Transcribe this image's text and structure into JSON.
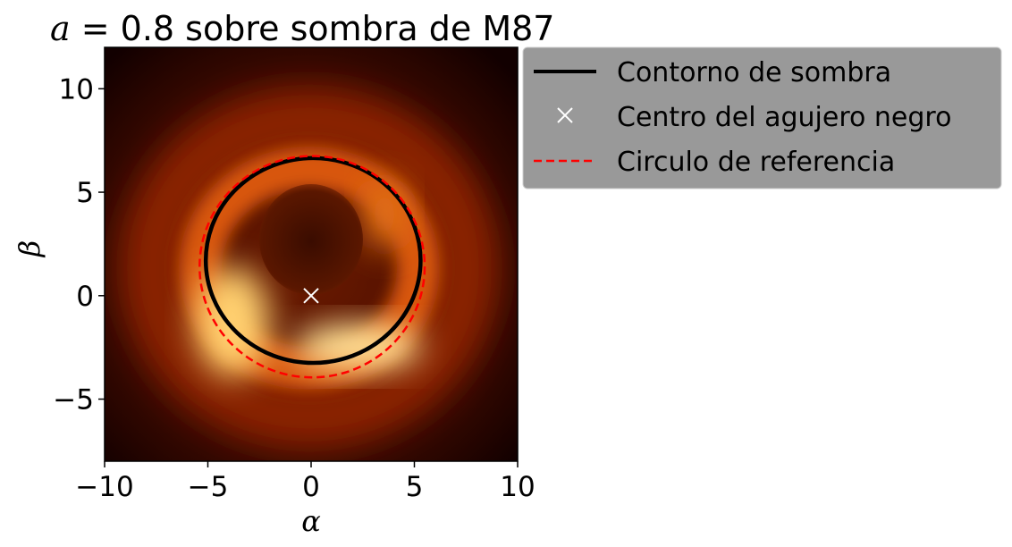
{
  "title_var": "a",
  "title_rest": " = 0.8 sobre sombra de M87",
  "chart_data": {
    "type": "scatter",
    "title": "a = 0.8 sobre sombra de M87",
    "xlabel": "α",
    "ylabel": "β",
    "xlim": [
      -10,
      10
    ],
    "ylim": [
      -8,
      12
    ],
    "xticks": [
      -10,
      -5,
      0,
      5,
      10
    ],
    "yticks": [
      -5,
      0,
      5,
      10
    ],
    "xtick_labels": [
      "−10",
      "−5",
      "0",
      "5",
      "10"
    ],
    "ytick_labels": [
      "−5",
      "0",
      "5",
      "10"
    ],
    "grid": false,
    "legend_position": "outside upper right",
    "background_image": "M87 black hole ring (afmhot colormap)",
    "series": [
      {
        "name": "Contorno de sombra",
        "kind": "closed-curve",
        "color": "#000000",
        "linestyle": "solid",
        "center": [
          0.1,
          1.7
        ],
        "radius_x": 5.2,
        "radius_y": 4.95
      },
      {
        "name": "Centro del agujero negro",
        "kind": "marker",
        "marker": "x",
        "color": "#ffffff",
        "points": [
          [
            0,
            0
          ]
        ]
      },
      {
        "name": "Circulo de referencia",
        "kind": "circle",
        "color": "#ff0000",
        "linestyle": "dashed",
        "center": [
          0.05,
          1.4
        ],
        "radius_x": 5.45,
        "radius_y": 5.35
      }
    ]
  },
  "legend": {
    "items": [
      {
        "label": "Contorno de sombra",
        "icon": "black-solid-line"
      },
      {
        "label": "Centro del agujero negro",
        "icon": "white-x-marker"
      },
      {
        "label": "Circulo de referencia",
        "icon": "red-dashed-line"
      }
    ],
    "background": "#999999"
  }
}
